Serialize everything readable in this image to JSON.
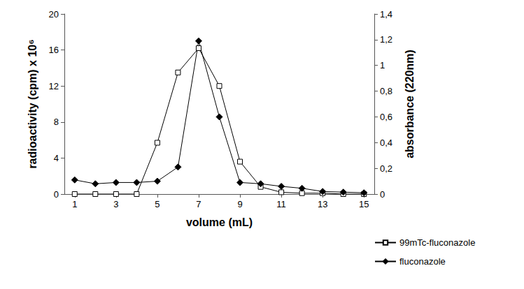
{
  "chart_data": {
    "type": "line",
    "x_label": "volume (mL)",
    "y_label": "radioactivity (cpm) x 10⁶",
    "y2_label": "absorbance (220nm)",
    "x": [
      1,
      2,
      3,
      4,
      5,
      6,
      7,
      8,
      9,
      10,
      11,
      12,
      13,
      14,
      15
    ],
    "xlim": [
      0.5,
      15.5
    ],
    "xticks": [
      1,
      3,
      5,
      7,
      9,
      11,
      13,
      15
    ],
    "ylim": [
      0,
      20
    ],
    "yticks": [
      0,
      4,
      8,
      12,
      16,
      20
    ],
    "y2lim": [
      0,
      1.4
    ],
    "y2ticks": [
      0,
      {
        "value": 0.2,
        "label": "0,2"
      },
      {
        "value": 0.4,
        "label": "0,4"
      },
      {
        "value": 0.6,
        "label": "0,6"
      },
      {
        "value": 0.8,
        "label": "0,8"
      },
      1,
      {
        "value": 1.2,
        "label": "1,2"
      },
      {
        "value": 1.4,
        "label": "1,4"
      }
    ],
    "grid": false,
    "legend": "bottom-right",
    "series": [
      {
        "name": "99mTc-fluconazole",
        "color": "#000000",
        "marker": "open-square",
        "values": [
          0,
          0,
          0,
          0,
          5.7,
          13.5,
          16.2,
          12,
          3.6,
          0.8,
          0.2,
          0.1,
          0.1,
          0,
          0
        ]
      },
      {
        "name": "fluconazole",
        "color": "#000000",
        "marker": "diamond",
        "axis": "y2",
        "values": [
          0.11,
          0.08,
          0.09,
          0.09,
          0.1,
          0.21,
          1.19,
          0.6,
          0.09,
          0.08,
          0.06,
          0.045,
          0.02,
          0.015,
          0.01
        ]
      }
    ]
  }
}
